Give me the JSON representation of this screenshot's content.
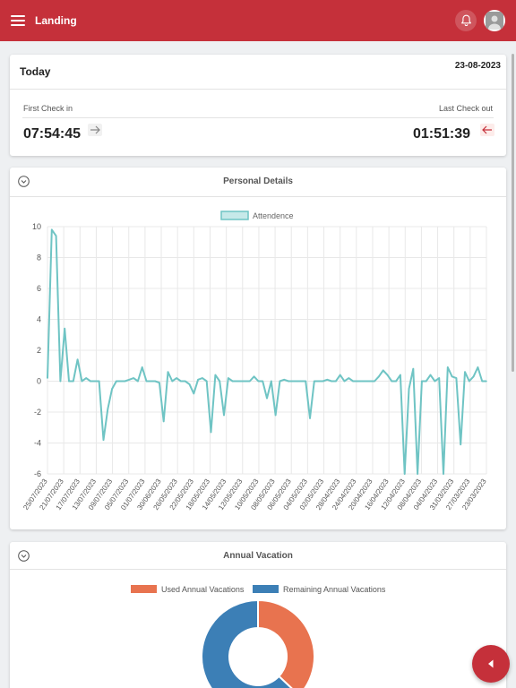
{
  "header": {
    "title": "Landing",
    "icons": {
      "menu": "hamburger-icon",
      "notifications": "bell-icon",
      "profile": "avatar"
    }
  },
  "today": {
    "title": "Today",
    "date": "23-08-2023",
    "first_check_in_label": "First Check in",
    "last_check_out_label": "Last Check out",
    "first_check_in": "07:54:45",
    "last_check_out": "01:51:39"
  },
  "personal": {
    "title": "Personal Details"
  },
  "vacation": {
    "title": "Annual Vacation"
  },
  "colors": {
    "brand": "#c5303a",
    "attendance_line": "#6fc4c4",
    "used": "#e8734f",
    "remaining": "#3c7fb6"
  },
  "chart_data": [
    {
      "type": "line",
      "series": [
        {
          "name": "Attendence",
          "values": [
            0.2,
            9.8,
            9.4,
            0,
            3.4,
            0,
            0,
            1.4,
            0,
            0.2,
            0,
            0,
            0,
            -3.8,
            -1.8,
            -0.5,
            0,
            0,
            0,
            0.1,
            0.2,
            0,
            0.9,
            0,
            0,
            0,
            -0.1,
            -2.6,
            0.6,
            0,
            0.2,
            0,
            0,
            -0.2,
            -0.8,
            0.1,
            0.2,
            0,
            -3.3,
            0.4,
            0,
            -2.2,
            0.2,
            0,
            0,
            0,
            0,
            0,
            0.3,
            0,
            0,
            -1.1,
            0,
            -2.2,
            0,
            0.1,
            0,
            0,
            0,
            0,
            0,
            -2.4,
            0,
            0,
            0,
            0.1,
            0,
            0,
            0.4,
            0,
            0.2,
            0,
            0,
            0,
            0,
            0,
            0,
            0.3,
            0.7,
            0.4,
            0,
            0,
            0.4,
            -6,
            -0.5,
            0.8,
            -6,
            0,
            0,
            0.4,
            0,
            0.2,
            -6,
            0.9,
            0.3,
            0.2,
            -4.1,
            0.6,
            0,
            0.3,
            0.9,
            0,
            0
          ]
        }
      ],
      "x_tick_labels": [
        "25/07/2023",
        "21/07/2023",
        "17/07/2023",
        "13/07/2023",
        "09/07/2023",
        "05/07/2023",
        "01/07/2023",
        "30/06/2023",
        "26/05/2023",
        "22/05/2023",
        "18/05/2023",
        "14/05/2023",
        "12/05/2023",
        "10/05/2023",
        "08/05/2023",
        "06/05/2023",
        "04/05/2023",
        "02/05/2023",
        "28/04/2023",
        "24/04/2023",
        "20/04/2023",
        "16/04/2023",
        "12/04/2023",
        "08/04/2023",
        "04/04/2023",
        "31/03/2023",
        "27/03/2023",
        "23/03/2023"
      ],
      "ylim": [
        -6,
        10
      ],
      "y_ticks": [
        10,
        8,
        6,
        4,
        2,
        0,
        -2,
        -4,
        -6
      ],
      "grid": true,
      "legend": "top-center"
    },
    {
      "type": "pie",
      "categories": [
        "Used Annual Vacations",
        "Remaining Annual Vacations"
      ],
      "values": [
        37,
        63
      ],
      "legend": "top-center",
      "donut": true
    }
  ]
}
